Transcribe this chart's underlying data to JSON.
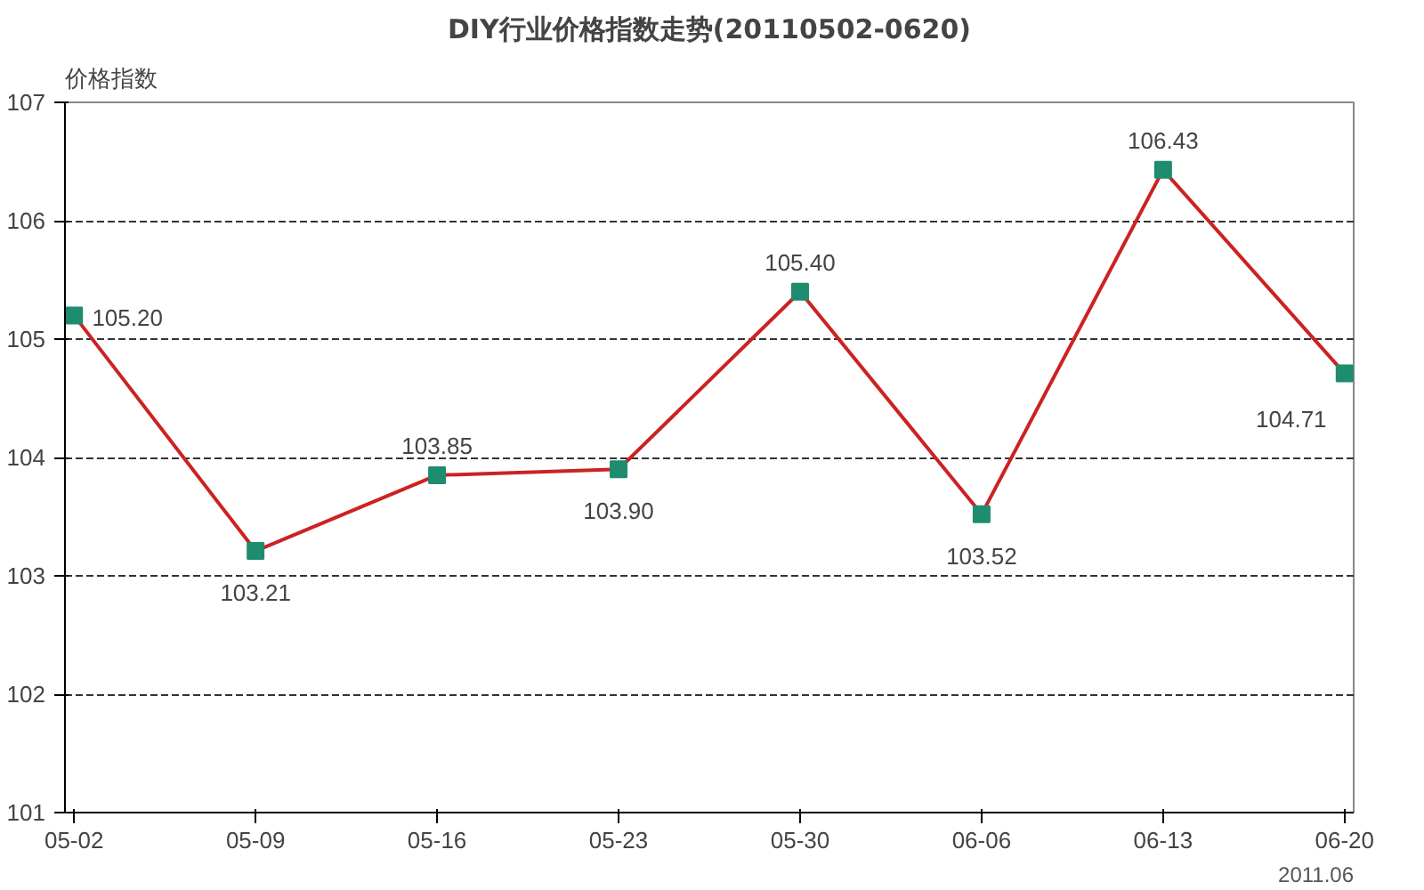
{
  "chart_data": {
    "type": "line",
    "title": "DIY行业价格指数走势(20110502-0620)",
    "ylabel": "价格指数",
    "categories": [
      "05-02",
      "05-09",
      "05-16",
      "05-23",
      "05-30",
      "06-06",
      "06-13",
      "06-20"
    ],
    "series": [
      {
        "color": "#cc2222",
        "colors": [
          "#1e8c6e",
          "#1e8c6e",
          "#1e8c6e",
          "#1e8c6e",
          "#1e8c6e",
          "#1e8c6e",
          "#1e8c6e",
          "#1e8c6e"
        ],
        "values": [
          105.2,
          103.21,
          103.85,
          103.9,
          105.4,
          103.52,
          106.43,
          104.71
        ],
        "value_labels": [
          "105.20",
          "103.21",
          "103.85",
          "103.90",
          "105.40",
          "103.52",
          "106.43",
          "104.71"
        ]
      }
    ],
    "ylim": [
      101,
      107
    ],
    "yticks": [
      101,
      102,
      103,
      104,
      105,
      106,
      107
    ],
    "grid": "y",
    "marker": "square",
    "line_style": "solid",
    "annotations": [
      "2011.06"
    ]
  }
}
